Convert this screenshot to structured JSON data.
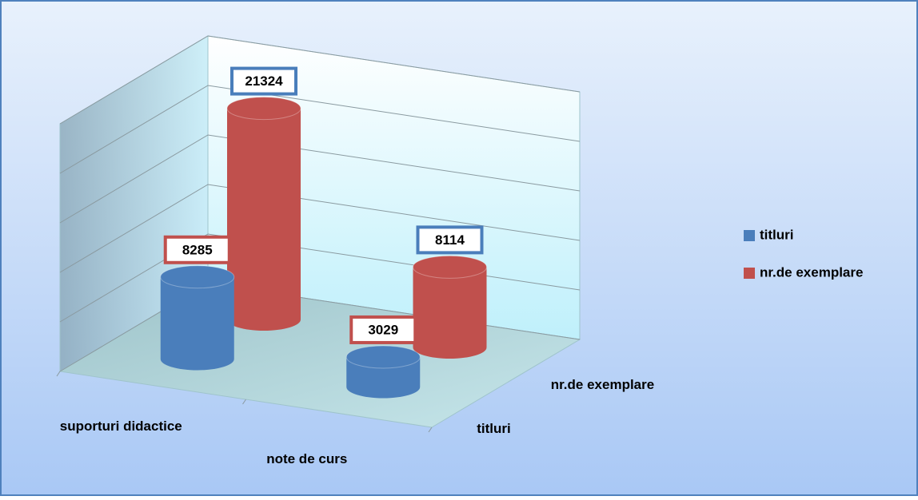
{
  "chart_data": {
    "type": "cylinder3d",
    "categories": [
      "suporturi didactice",
      "note de curs"
    ],
    "series": [
      {
        "name": "titluri",
        "color": "#4a7ebb",
        "values": [
          8285,
          3029
        ]
      },
      {
        "name": "nr.de exemplare",
        "color": "#c0504d",
        "values": [
          21324,
          8114
        ]
      }
    ],
    "ylim": [
      0,
      25000
    ],
    "yticks": [
      0,
      5000,
      10000,
      15000,
      20000,
      25000
    ],
    "grid": true,
    "legend": "right"
  }
}
